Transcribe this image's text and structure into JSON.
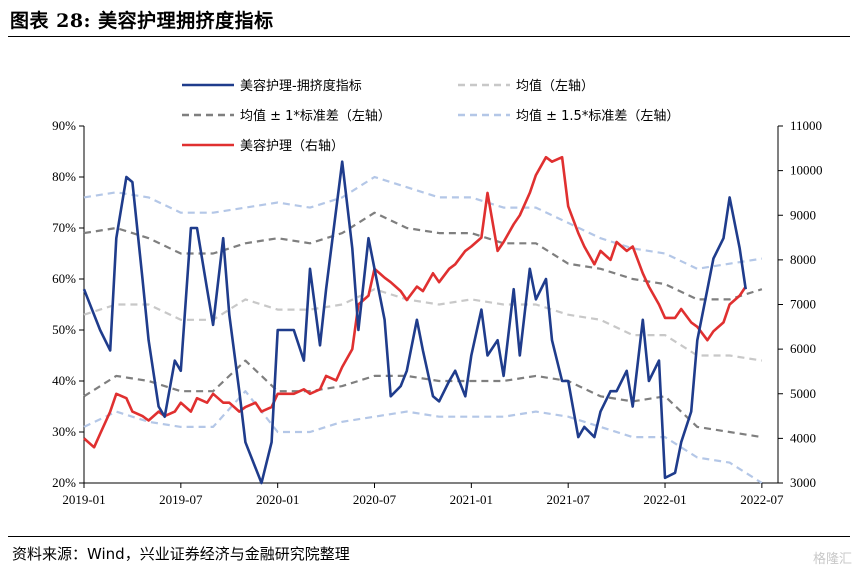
{
  "figure": {
    "title": "图表 28:  美容护理拥挤度指标",
    "source": "资料来源：Wind，兴业证券经济与金融研究院整理",
    "logo": "格隆汇"
  },
  "chart_data": {
    "type": "line",
    "x_ticks": [
      "2019-01",
      "2019-07",
      "2020-01",
      "2020-07",
      "2021-01",
      "2021-07",
      "2022-01",
      "2022-07"
    ],
    "x_range": [
      "2019-01",
      "2022-08"
    ],
    "left_axis": {
      "range": [
        20,
        90
      ],
      "ticks": [
        "20%",
        "30%",
        "40%",
        "50%",
        "60%",
        "70%",
        "80%",
        "90%"
      ]
    },
    "right_axis": {
      "range": [
        3000,
        11000
      ],
      "ticks": [
        "3000",
        "4000",
        "5000",
        "6000",
        "7000",
        "8000",
        "9000",
        "10000",
        "11000"
      ]
    },
    "grid": false,
    "legend_position": "top",
    "series": [
      {
        "name": "美容护理-拥挤度指标",
        "axis": "left",
        "color": "#1f3c8c",
        "style": "solid",
        "points": [
          [
            "2019-01",
            58
          ],
          [
            "2019-02",
            50
          ],
          [
            "2019-02-20",
            46
          ],
          [
            "2019-03",
            68
          ],
          [
            "2019-03-20",
            80
          ],
          [
            "2019-04",
            79
          ],
          [
            "2019-04-20",
            60
          ],
          [
            "2019-05",
            48
          ],
          [
            "2019-05-20",
            35
          ],
          [
            "2019-06",
            33
          ],
          [
            "2019-06-20",
            44
          ],
          [
            "2019-07",
            42
          ],
          [
            "2019-07-20",
            70
          ],
          [
            "2019-08",
            70
          ],
          [
            "2019-08-20",
            58
          ],
          [
            "2019-09",
            51
          ],
          [
            "2019-09-20",
            68
          ],
          [
            "2019-10",
            53
          ],
          [
            "2019-10-20",
            38
          ],
          [
            "2019-11",
            28
          ],
          [
            "2019-12",
            20
          ],
          [
            "2019-12-20",
            28
          ],
          [
            "2020-01",
            50
          ],
          [
            "2020-02",
            50
          ],
          [
            "2020-02-20",
            44
          ],
          [
            "2020-03",
            62
          ],
          [
            "2020-03-20",
            47
          ],
          [
            "2020-04",
            58
          ],
          [
            "2020-05",
            83
          ],
          [
            "2020-05-20",
            66
          ],
          [
            "2020-06",
            50
          ],
          [
            "2020-06-20",
            68
          ],
          [
            "2020-07",
            62
          ],
          [
            "2020-07-20",
            52
          ],
          [
            "2020-08",
            37
          ],
          [
            "2020-08-20",
            39
          ],
          [
            "2020-09",
            42
          ],
          [
            "2020-09-20",
            52
          ],
          [
            "2020-10",
            46
          ],
          [
            "2020-10-20",
            37
          ],
          [
            "2020-11",
            36
          ],
          [
            "2020-11-20",
            40
          ],
          [
            "2020-12",
            42
          ],
          [
            "2020-12-20",
            37
          ],
          [
            "2021-01",
            45
          ],
          [
            "2021-01-20",
            54
          ],
          [
            "2021-02",
            45
          ],
          [
            "2021-02-20",
            48
          ],
          [
            "2021-03",
            41
          ],
          [
            "2021-03-20",
            58
          ],
          [
            "2021-04",
            45
          ],
          [
            "2021-04-20",
            62
          ],
          [
            "2021-05",
            56
          ],
          [
            "2021-05-20",
            60
          ],
          [
            "2021-06",
            48
          ],
          [
            "2021-06-20",
            40
          ],
          [
            "2021-07",
            40
          ],
          [
            "2021-07-20",
            29
          ],
          [
            "2021-08",
            31
          ],
          [
            "2021-08-20",
            29
          ],
          [
            "2021-09",
            34
          ],
          [
            "2021-09-20",
            38
          ],
          [
            "2021-10",
            38
          ],
          [
            "2021-10-20",
            42
          ],
          [
            "2021-11",
            35
          ],
          [
            "2021-11-20",
            52
          ],
          [
            "2021-12",
            40
          ],
          [
            "2021-12-20",
            44
          ],
          [
            "2022-01",
            21
          ],
          [
            "2022-01-20",
            22
          ],
          [
            "2022-02",
            28
          ],
          [
            "2022-02-20",
            34
          ],
          [
            "2022-03",
            48
          ],
          [
            "2022-03-20",
            58
          ],
          [
            "2022-04",
            64
          ],
          [
            "2022-04-20",
            68
          ],
          [
            "2022-05",
            76
          ],
          [
            "2022-05-20",
            66
          ],
          [
            "2022-06",
            58
          ]
        ]
      },
      {
        "name": "均值（左轴）",
        "axis": "left",
        "color": "#c8c8c8",
        "style": "dash",
        "points": [
          [
            "2019-01",
            53
          ],
          [
            "2019-03",
            55
          ],
          [
            "2019-05",
            55
          ],
          [
            "2019-07",
            52
          ],
          [
            "2019-09",
            52
          ],
          [
            "2019-11",
            56
          ],
          [
            "2020-01",
            54
          ],
          [
            "2020-03",
            54
          ],
          [
            "2020-05",
            55
          ],
          [
            "2020-07",
            58
          ],
          [
            "2020-09",
            56
          ],
          [
            "2020-11",
            55
          ],
          [
            "2021-01",
            56
          ],
          [
            "2021-03",
            55
          ],
          [
            "2021-05",
            55
          ],
          [
            "2021-07",
            53
          ],
          [
            "2021-09",
            52
          ],
          [
            "2021-11",
            49
          ],
          [
            "2022-01",
            49
          ],
          [
            "2022-03",
            45
          ],
          [
            "2022-05",
            45
          ],
          [
            "2022-07",
            44
          ]
        ]
      },
      {
        "name": "均值±1*标准差（左轴）",
        "axis": "left",
        "color": "#7f7f7f",
        "style": "dash",
        "points": [
          [
            "2019-01",
            69
          ],
          [
            "2019-03",
            70
          ],
          [
            "2019-05",
            68
          ],
          [
            "2019-07",
            65
          ],
          [
            "2019-09",
            65
          ],
          [
            "2019-11",
            67
          ],
          [
            "2020-01",
            68
          ],
          [
            "2020-03",
            67
          ],
          [
            "2020-05",
            69
          ],
          [
            "2020-07",
            73
          ],
          [
            "2020-09",
            70
          ],
          [
            "2020-11",
            69
          ],
          [
            "2021-01",
            69
          ],
          [
            "2021-03",
            67
          ],
          [
            "2021-05",
            67
          ],
          [
            "2021-07",
            63
          ],
          [
            "2021-09",
            62
          ],
          [
            "2021-11",
            60
          ],
          [
            "2022-01",
            59
          ],
          [
            "2022-03",
            56
          ],
          [
            "2022-05",
            56
          ],
          [
            "2022-07",
            58
          ]
        ]
      },
      {
        "name": "均值±1*标准差（左轴）",
        "axis": "left",
        "color": "#7f7f7f",
        "style": "dash",
        "points": [
          [
            "2019-01",
            37
          ],
          [
            "2019-03",
            41
          ],
          [
            "2019-05",
            40
          ],
          [
            "2019-07",
            38
          ],
          [
            "2019-09",
            38
          ],
          [
            "2019-11",
            44
          ],
          [
            "2020-01",
            38
          ],
          [
            "2020-03",
            38
          ],
          [
            "2020-05",
            39
          ],
          [
            "2020-07",
            41
          ],
          [
            "2020-09",
            41
          ],
          [
            "2020-11",
            40
          ],
          [
            "2021-01",
            40
          ],
          [
            "2021-03",
            40
          ],
          [
            "2021-05",
            41
          ],
          [
            "2021-07",
            40
          ],
          [
            "2021-09",
            37
          ],
          [
            "2021-11",
            36
          ],
          [
            "2022-01",
            37
          ],
          [
            "2022-03",
            31
          ],
          [
            "2022-05",
            30
          ],
          [
            "2022-07",
            29
          ]
        ]
      },
      {
        "name": "均值±1.5*标准差（左轴）",
        "axis": "left",
        "color": "#b4c7e7",
        "style": "dash",
        "points": [
          [
            "2019-01",
            76
          ],
          [
            "2019-03",
            77
          ],
          [
            "2019-05",
            76
          ],
          [
            "2019-07",
            73
          ],
          [
            "2019-09",
            73
          ],
          [
            "2019-11",
            74
          ],
          [
            "2020-01",
            75
          ],
          [
            "2020-03",
            74
          ],
          [
            "2020-05",
            76
          ],
          [
            "2020-07",
            80
          ],
          [
            "2020-09",
            78
          ],
          [
            "2020-11",
            76
          ],
          [
            "2021-01",
            76
          ],
          [
            "2021-03",
            74
          ],
          [
            "2021-05",
            74
          ],
          [
            "2021-07",
            71
          ],
          [
            "2021-09",
            68
          ],
          [
            "2021-11",
            66
          ],
          [
            "2022-01",
            65
          ],
          [
            "2022-03",
            62
          ],
          [
            "2022-05",
            63
          ],
          [
            "2022-07",
            64
          ]
        ]
      },
      {
        "name": "均值±1.5*标准差（左轴）",
        "axis": "left",
        "color": "#b4c7e7",
        "style": "dash",
        "points": [
          [
            "2019-01",
            31
          ],
          [
            "2019-03",
            34
          ],
          [
            "2019-05",
            32
          ],
          [
            "2019-07",
            31
          ],
          [
            "2019-09",
            31
          ],
          [
            "2019-11",
            38
          ],
          [
            "2020-01",
            30
          ],
          [
            "2020-03",
            30
          ],
          [
            "2020-05",
            32
          ],
          [
            "2020-07",
            33
          ],
          [
            "2020-09",
            34
          ],
          [
            "2020-11",
            33
          ],
          [
            "2021-01",
            33
          ],
          [
            "2021-03",
            33
          ],
          [
            "2021-05",
            34
          ],
          [
            "2021-07",
            33
          ],
          [
            "2021-09",
            31
          ],
          [
            "2021-11",
            29
          ],
          [
            "2022-01",
            29
          ],
          [
            "2022-03",
            25
          ],
          [
            "2022-05",
            24
          ],
          [
            "2022-07",
            20
          ]
        ]
      },
      {
        "name": "美容护理（右轴）",
        "axis": "right",
        "color": "#e03030",
        "style": "solid",
        "points": [
          [
            "2019-01",
            4000
          ],
          [
            "2019-01-20",
            3800
          ],
          [
            "2019-02",
            4100
          ],
          [
            "2019-02-20",
            4600
          ],
          [
            "2019-03",
            5000
          ],
          [
            "2019-03-20",
            4900
          ],
          [
            "2019-04",
            4600
          ],
          [
            "2019-04-20",
            4500
          ],
          [
            "2019-05",
            4400
          ],
          [
            "2019-05-20",
            4600
          ],
          [
            "2019-06",
            4500
          ],
          [
            "2019-06-20",
            4600
          ],
          [
            "2019-07",
            4800
          ],
          [
            "2019-07-20",
            4600
          ],
          [
            "2019-08",
            4900
          ],
          [
            "2019-08-20",
            4800
          ],
          [
            "2019-09",
            5000
          ],
          [
            "2019-09-20",
            4800
          ],
          [
            "2019-10",
            4800
          ],
          [
            "2019-10-20",
            4600
          ],
          [
            "2019-11",
            4700
          ],
          [
            "2019-11-20",
            4800
          ],
          [
            "2019-12",
            4600
          ],
          [
            "2019-12-20",
            4700
          ],
          [
            "2020-01",
            5000
          ],
          [
            "2020-02",
            5000
          ],
          [
            "2020-02-20",
            5100
          ],
          [
            "2020-03",
            5000
          ],
          [
            "2020-03-20",
            5100
          ],
          [
            "2020-04",
            5400
          ],
          [
            "2020-04-20",
            5300
          ],
          [
            "2020-05",
            5600
          ],
          [
            "2020-05-20",
            6000
          ],
          [
            "2020-06",
            7000
          ],
          [
            "2020-06-20",
            7200
          ],
          [
            "2020-07",
            7800
          ],
          [
            "2020-07-20",
            7600
          ],
          [
            "2020-08",
            7500
          ],
          [
            "2020-08-20",
            7300
          ],
          [
            "2020-09",
            7100
          ],
          [
            "2020-09-20",
            7400
          ],
          [
            "2020-10",
            7300
          ],
          [
            "2020-10-20",
            7700
          ],
          [
            "2020-11",
            7500
          ],
          [
            "2020-11-20",
            7800
          ],
          [
            "2020-12",
            7900
          ],
          [
            "2020-12-20",
            8200
          ],
          [
            "2021-01",
            8300
          ],
          [
            "2021-01-20",
            8500
          ],
          [
            "2021-02",
            9500
          ],
          [
            "2021-02-20",
            8200
          ],
          [
            "2021-03",
            8400
          ],
          [
            "2021-03-20",
            8800
          ],
          [
            "2021-04",
            9000
          ],
          [
            "2021-04-20",
            9500
          ],
          [
            "2021-05",
            9900
          ],
          [
            "2021-05-20",
            10300
          ],
          [
            "2021-06",
            10200
          ],
          [
            "2021-06-20",
            10300
          ],
          [
            "2021-07",
            9200
          ],
          [
            "2021-07-20",
            8600
          ],
          [
            "2021-08",
            8300
          ],
          [
            "2021-08-20",
            7900
          ],
          [
            "2021-09",
            8200
          ],
          [
            "2021-09-20",
            8000
          ],
          [
            "2021-10",
            8400
          ],
          [
            "2021-10-20",
            8200
          ],
          [
            "2021-11",
            8300
          ],
          [
            "2021-11-20",
            7700
          ],
          [
            "2021-12",
            7400
          ],
          [
            "2021-12-20",
            7000
          ],
          [
            "2022-01",
            6700
          ],
          [
            "2022-01-20",
            6700
          ],
          [
            "2022-02",
            6900
          ],
          [
            "2022-02-20",
            6600
          ],
          [
            "2022-03",
            6500
          ],
          [
            "2022-03-20",
            6200
          ],
          [
            "2022-04",
            6400
          ],
          [
            "2022-04-20",
            6600
          ],
          [
            "2022-05",
            7000
          ],
          [
            "2022-05-20",
            7200
          ],
          [
            "2022-06",
            7400
          ]
        ]
      }
    ]
  },
  "legend": [
    {
      "label": "美容护理-拥挤度指标",
      "color": "#1f3c8c",
      "style": "solid"
    },
    {
      "label": "均值（左轴）",
      "color": "#c8c8c8",
      "style": "dash"
    },
    {
      "label": "均值 ± 1*标准差（左轴）",
      "color": "#7f7f7f",
      "style": "dash"
    },
    {
      "label": "均值 ± 1.5*标准差（左轴）",
      "color": "#b4c7e7",
      "style": "dash"
    },
    {
      "label": "美容护理（右轴）",
      "color": "#e03030",
      "style": "solid"
    }
  ]
}
